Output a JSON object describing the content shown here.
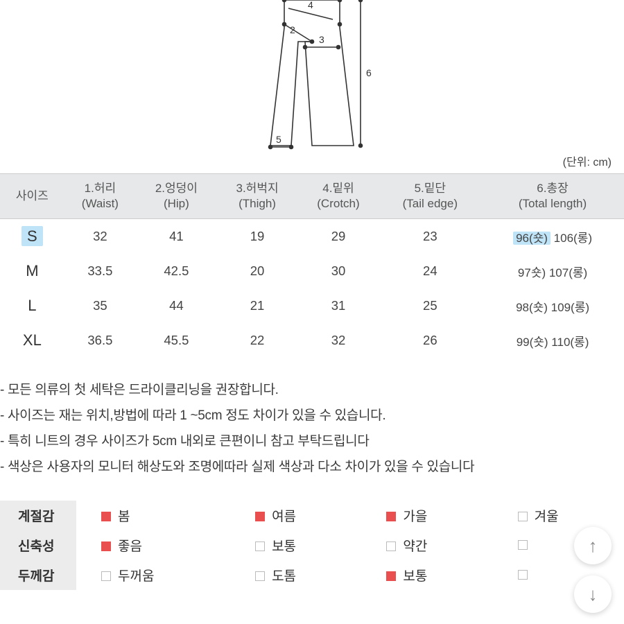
{
  "diagram": {
    "labels": [
      "4",
      "2",
      "3",
      "6",
      "5"
    ],
    "unit_text": "(단위: cm)"
  },
  "size_table": {
    "columns": [
      {
        "head1": "사이즈",
        "head2": ""
      },
      {
        "head1": "1.허리",
        "head2": "(Waist)"
      },
      {
        "head1": "2.엉덩이",
        "head2": "(Hip)"
      },
      {
        "head1": "3.허벅지",
        "head2": "(Thigh)"
      },
      {
        "head1": "4.밑위",
        "head2": "(Crotch)"
      },
      {
        "head1": "5.밑단",
        "head2": "(Tail edge)"
      },
      {
        "head1": "6.총장",
        "head2": "(Total length)"
      }
    ],
    "rows": [
      {
        "size": "S",
        "waist": "32",
        "hip": "41",
        "thigh": "19",
        "crotch": "29",
        "tail": "23",
        "total": "96(숏) 106(롱)",
        "highlight": true,
        "tl_highlight": "96(숏)"
      },
      {
        "size": "M",
        "waist": "33.5",
        "hip": "42.5",
        "thigh": "20",
        "crotch": "30",
        "tail": "24",
        "total": "97숏) 107(롱)",
        "highlight": false
      },
      {
        "size": "L",
        "waist": "35",
        "hip": "44",
        "thigh": "21",
        "crotch": "31",
        "tail": "25",
        "total": "98(숏) 109(롱)",
        "highlight": false
      },
      {
        "size": "XL",
        "waist": "36.5",
        "hip": "45.5",
        "thigh": "22",
        "crotch": "32",
        "tail": "26",
        "total": "99(숏) 110(롱)",
        "highlight": false
      }
    ]
  },
  "notes": [
    "- 모든 의류의 첫 세탁은 드라이클리닝을 권장합니다.",
    "- 사이즈는 재는 위치,방법에 따라 1 ~5cm 정도 차이가 있을 수 있습니다.",
    "- 특히 니트의 경우 사이즈가 5cm 내외로 큰편이니 참고 부탁드립니다",
    "- 색상은 사용자의 모니터 해상도와 조명에따라 실제 색상과 다소 차이가 있을 수 있습니다"
  ],
  "attrs": {
    "rows": [
      {
        "label": "계절감",
        "options": [
          {
            "text": "봄",
            "on": true
          },
          {
            "text": "여름",
            "on": true
          },
          {
            "text": "가을",
            "on": true
          },
          {
            "text": "겨울",
            "on": false
          }
        ]
      },
      {
        "label": "신축성",
        "options": [
          {
            "text": "좋음",
            "on": true
          },
          {
            "text": "보통",
            "on": false
          },
          {
            "text": "약간",
            "on": false
          },
          {
            "text": "",
            "on": false
          }
        ]
      },
      {
        "label": "두께감",
        "options": [
          {
            "text": "두꺼움",
            "on": false
          },
          {
            "text": "도톰",
            "on": false
          },
          {
            "text": "보통",
            "on": true
          },
          {
            "text": "",
            "on": false
          }
        ]
      }
    ]
  },
  "nav": {
    "up": "↑",
    "down": "↓"
  }
}
